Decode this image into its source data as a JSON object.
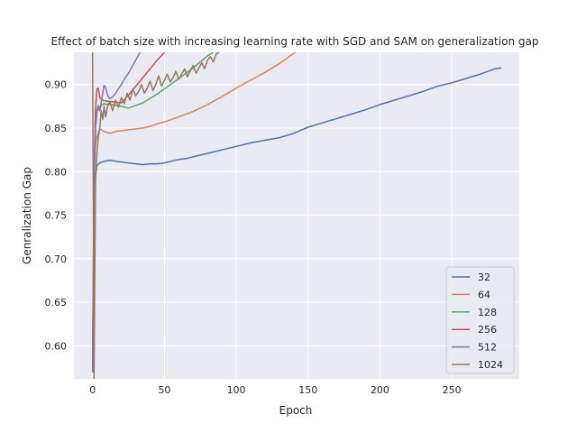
{
  "chart_data": {
    "type": "line",
    "title": "Effect of batch size with increasing learning rate with SGD and SAM on generalization gap",
    "xlabel": "Epoch",
    "ylabel": "Genralization Gap",
    "xlim": [
      -13,
      297
    ],
    "ylim": [
      0.562,
      0.937
    ],
    "xticks": [
      0,
      50,
      100,
      150,
      200,
      250
    ],
    "yticks": [
      0.6,
      0.65,
      0.7,
      0.75,
      0.8,
      0.85,
      0.9
    ],
    "grid": true,
    "legend_position": "bottom-right",
    "series": [
      {
        "name": "32",
        "color": "#4c72b0",
        "x": [
          0,
          1,
          2,
          3,
          5,
          8,
          12,
          16,
          20,
          25,
          30,
          35,
          40,
          45,
          50,
          55,
          60,
          65,
          70,
          75,
          80,
          85,
          90,
          95,
          100,
          110,
          120,
          130,
          140,
          150,
          160,
          170,
          180,
          190,
          200,
          210,
          220,
          230,
          240,
          250,
          260,
          270,
          280,
          284
        ],
        "y": [
          0.59,
          0.7,
          0.795,
          0.807,
          0.81,
          0.812,
          0.813,
          0.812,
          0.811,
          0.81,
          0.809,
          0.808,
          0.809,
          0.809,
          0.81,
          0.812,
          0.814,
          0.815,
          0.817,
          0.819,
          0.821,
          0.823,
          0.825,
          0.827,
          0.829,
          0.833,
          0.836,
          0.839,
          0.844,
          0.851,
          0.856,
          0.861,
          0.866,
          0.871,
          0.877,
          0.882,
          0.887,
          0.892,
          0.898,
          0.902,
          0.907,
          0.912,
          0.918,
          0.919
        ]
      },
      {
        "name": "64",
        "color": "#dd8452",
        "x": [
          0,
          1,
          2,
          3,
          5,
          8,
          12,
          16,
          20,
          25,
          30,
          35,
          40,
          45,
          50,
          55,
          60,
          70,
          80,
          90,
          100,
          110,
          120,
          130,
          136,
          141
        ],
        "y": [
          0.57,
          0.8,
          0.83,
          0.84,
          0.849,
          0.846,
          0.844,
          0.846,
          0.847,
          0.848,
          0.849,
          0.85,
          0.852,
          0.855,
          0.857,
          0.86,
          0.863,
          0.869,
          0.877,
          0.886,
          0.896,
          0.905,
          0.914,
          0.924,
          0.931,
          0.937
        ]
      },
      {
        "name": "128",
        "color": "#55a868",
        "x": [
          0,
          1,
          2,
          3,
          4,
          6,
          8,
          10,
          13,
          16,
          20,
          25,
          30,
          35,
          40,
          45,
          50,
          55,
          60,
          65,
          70,
          75,
          80,
          84
        ],
        "y": [
          0.57,
          0.78,
          0.85,
          0.868,
          0.872,
          0.876,
          0.878,
          0.877,
          0.877,
          0.876,
          0.875,
          0.873,
          0.876,
          0.879,
          0.884,
          0.889,
          0.895,
          0.901,
          0.907,
          0.913,
          0.919,
          0.926,
          0.933,
          0.937
        ]
      },
      {
        "name": "256",
        "color": "#c44e52",
        "x": [
          0,
          1,
          2,
          3,
          4,
          5,
          7,
          10,
          15,
          20,
          25,
          30,
          35,
          40,
          45,
          50
        ],
        "y": [
          0.58,
          0.8,
          0.87,
          0.895,
          0.896,
          0.885,
          0.882,
          0.881,
          0.88,
          0.879,
          0.888,
          0.898,
          0.908,
          0.918,
          0.928,
          0.937
        ]
      },
      {
        "name": "512",
        "color": "#8172b3",
        "x": [
          0,
          1,
          2,
          3,
          4,
          5,
          6,
          7,
          8,
          9,
          10,
          11,
          12,
          14,
          16,
          18,
          20,
          22,
          25,
          28,
          31,
          33
        ],
        "y": [
          0.57,
          0.79,
          0.85,
          0.87,
          0.876,
          0.87,
          0.88,
          0.89,
          0.899,
          0.897,
          0.89,
          0.886,
          0.884,
          0.886,
          0.89,
          0.895,
          0.9,
          0.906,
          0.913,
          0.922,
          0.931,
          0.937
        ]
      },
      {
        "name": "1024",
        "color": "#937860",
        "x": [
          0,
          1,
          2,
          3,
          4,
          5,
          6,
          7,
          8,
          9,
          10,
          11,
          12,
          14,
          16,
          18,
          20,
          22,
          24,
          26,
          28,
          30,
          32,
          34,
          36,
          38,
          40,
          42,
          44,
          46,
          48,
          50,
          52,
          54,
          56,
          58,
          60,
          62,
          64,
          66,
          68,
          70,
          72,
          74,
          76,
          78,
          80,
          82,
          84,
          86,
          88
        ],
        "y": [
          0.937,
          0.562,
          0.79,
          0.82,
          0.84,
          0.85,
          0.87,
          0.86,
          0.875,
          0.863,
          0.872,
          0.878,
          0.88,
          0.87,
          0.882,
          0.874,
          0.885,
          0.878,
          0.89,
          0.882,
          0.895,
          0.887,
          0.892,
          0.9,
          0.89,
          0.896,
          0.904,
          0.893,
          0.9,
          0.91,
          0.898,
          0.905,
          0.912,
          0.903,
          0.908,
          0.915,
          0.906,
          0.912,
          0.918,
          0.909,
          0.916,
          0.922,
          0.913,
          0.919,
          0.925,
          0.918,
          0.928,
          0.932,
          0.926,
          0.935,
          0.937
        ]
      }
    ]
  }
}
